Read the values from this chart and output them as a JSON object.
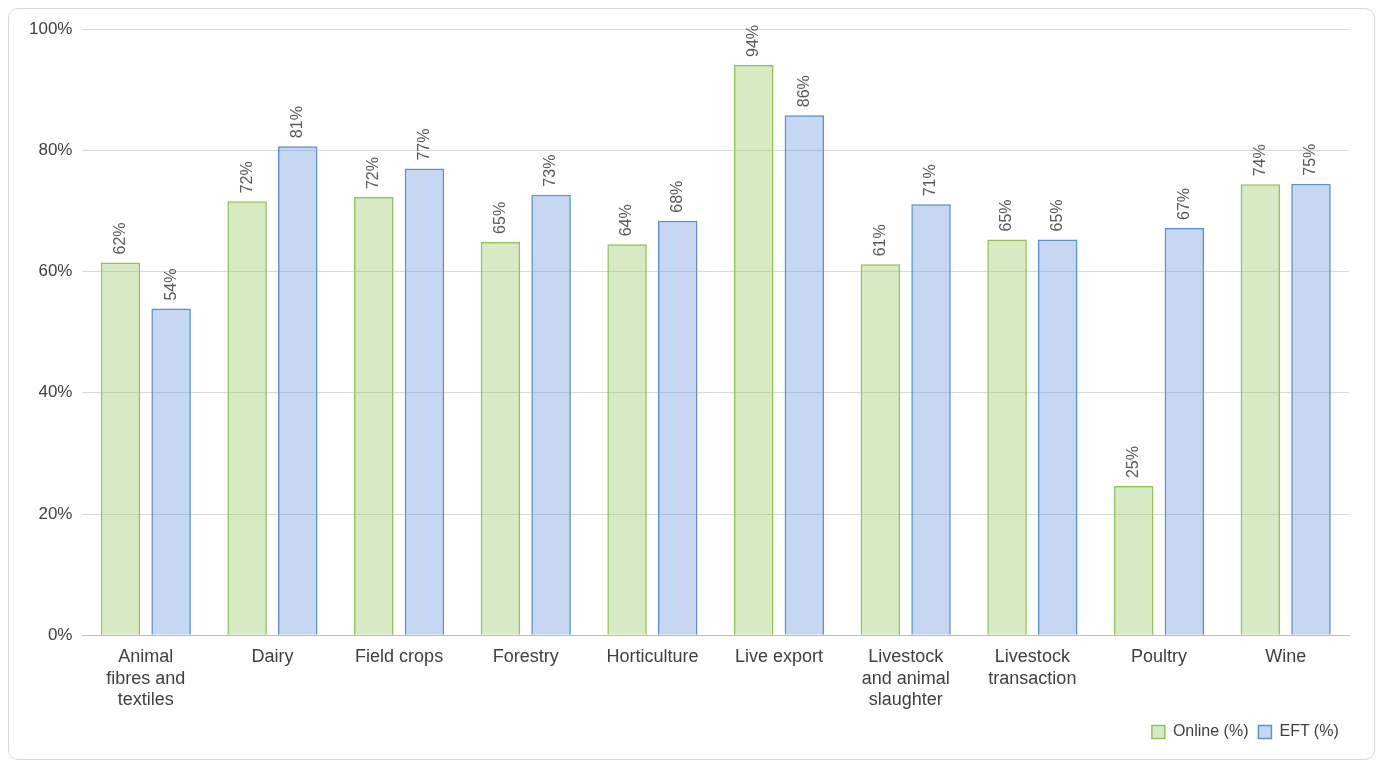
{
  "chart_data": {
    "type": "bar",
    "categories": [
      "Animal fibres and textiles",
      "Dairy",
      "Field crops",
      "Forestry",
      "Horticulture",
      "Live export",
      "Livestock and animal slaughter",
      "Livestock transaction",
      "Poultry",
      "Wine"
    ],
    "series": [
      {
        "name": "Online (%)",
        "color": "#8fc457",
        "values": [
          61.5,
          71.6,
          72.3,
          64.9,
          64.5,
          94.1,
          61.2,
          65.3,
          24.6,
          74.4
        ],
        "value_labels": [
          "62%",
          "72%",
          "72%",
          "65%",
          "64%",
          "94%",
          "61%",
          "65%",
          "25%",
          "74%"
        ]
      },
      {
        "name": "EFT (%)",
        "color": "#5b8fd6",
        "values": [
          53.9,
          80.7,
          77.0,
          72.7,
          68.4,
          85.8,
          71.1,
          65.3,
          67.2,
          74.5
        ],
        "value_labels": [
          "54%",
          "81%",
          "77%",
          "73%",
          "68%",
          "86%",
          "71%",
          "65%",
          "67%",
          "75%"
        ]
      }
    ],
    "ylim": [
      0,
      100
    ],
    "yticks": [
      {
        "value": 0,
        "label": "0%"
      },
      {
        "value": 20,
        "label": "20%"
      },
      {
        "value": 40,
        "label": "40%"
      },
      {
        "value": 60,
        "label": "60%"
      },
      {
        "value": 80,
        "label": "80%"
      },
      {
        "value": 100,
        "label": "100%"
      }
    ],
    "grid": "y",
    "legend": "bottom right"
  }
}
